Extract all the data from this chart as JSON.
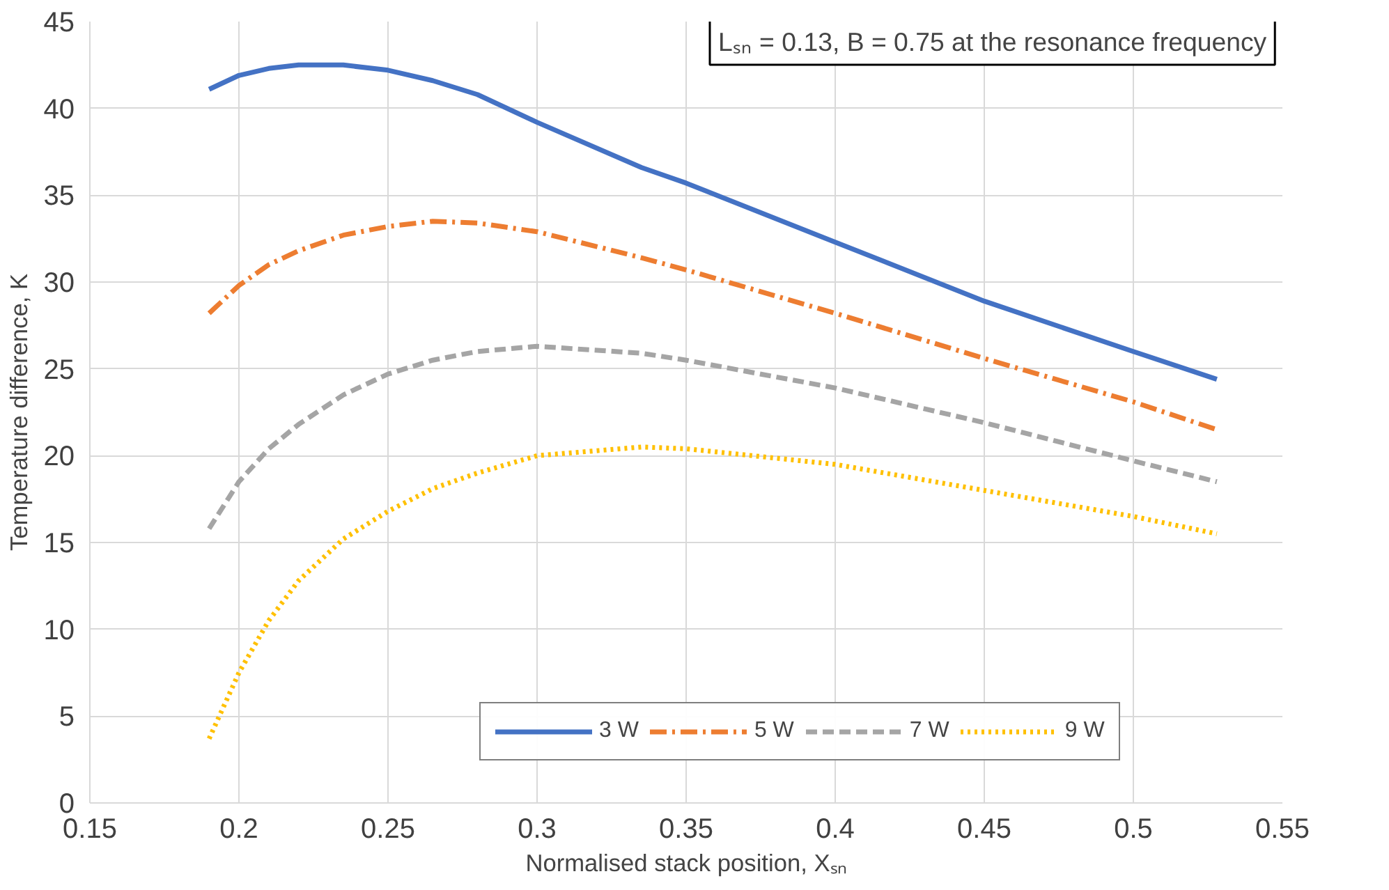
{
  "chart_data": {
    "type": "line",
    "xlabel": "Normalised stack position, Xₛₙ",
    "ylabel": "Temperature difference, K",
    "annotations": [
      "Lₛₙ = 0.13, B = 0.75 at the resonance frequency"
    ],
    "x": [
      0.19,
      0.2,
      0.21,
      0.22,
      0.235,
      0.25,
      0.265,
      0.28,
      0.3,
      0.335,
      0.35,
      0.4,
      0.45,
      0.5,
      0.528
    ],
    "series": [
      {
        "name": "3 W",
        "color": "#4472c4",
        "line_style": "solid",
        "values": [
          41.1,
          41.9,
          42.3,
          42.5,
          42.5,
          42.2,
          41.6,
          40.8,
          39.2,
          36.6,
          35.7,
          32.3,
          28.9,
          26.0,
          24.4
        ]
      },
      {
        "name": "5 W",
        "color": "#ed7d31",
        "line_style": "dashdot",
        "values": [
          28.2,
          29.8,
          31.0,
          31.8,
          32.7,
          33.2,
          33.5,
          33.4,
          32.9,
          31.4,
          30.7,
          28.2,
          25.6,
          23.1,
          21.5
        ]
      },
      {
        "name": "7 W",
        "color": "#a5a5a5",
        "line_style": "dashed",
        "values": [
          15.8,
          18.5,
          20.4,
          21.8,
          23.5,
          24.7,
          25.5,
          26.0,
          26.3,
          25.9,
          25.5,
          23.9,
          21.9,
          19.7,
          18.5
        ]
      },
      {
        "name": "9 W",
        "color": "#ffc000",
        "line_style": "dotted",
        "values": [
          3.7,
          7.5,
          10.5,
          12.8,
          15.2,
          16.8,
          18.1,
          19.0,
          20.0,
          20.5,
          20.4,
          19.5,
          18.0,
          16.5,
          15.5
        ]
      }
    ],
    "xlim": [
      0.15,
      0.55
    ],
    "xticks": [
      0.15,
      0.2,
      0.25,
      0.3,
      0.35,
      0.4,
      0.45,
      0.5,
      0.55
    ],
    "ylim": [
      0,
      45
    ],
    "yticks": [
      0,
      5,
      10,
      15,
      20,
      25,
      30,
      35,
      40,
      45
    ],
    "grid": true,
    "legend": "bottom",
    "marker": "none"
  }
}
